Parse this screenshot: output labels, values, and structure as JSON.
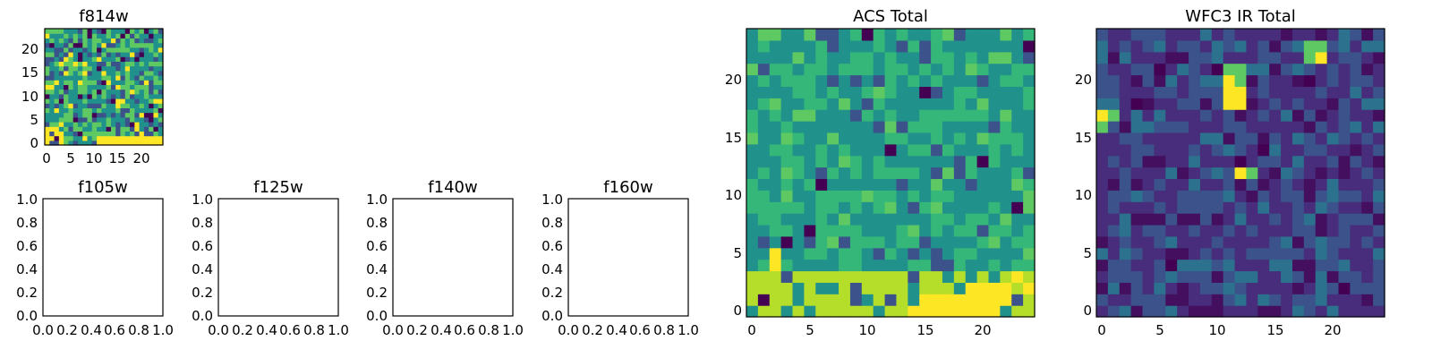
{
  "figure": {
    "colormap": "viridis",
    "colors": [
      "#440154",
      "#3b528b",
      "#21918c",
      "#5ec962",
      "#fde725"
    ]
  },
  "chart_data": [
    {
      "id": "f814w",
      "type": "heatmap",
      "title": "f814w",
      "xlabel": "",
      "ylabel": "",
      "xlim": [
        -0.5,
        24.5
      ],
      "ylim": [
        -0.5,
        24.5
      ],
      "xticks": [
        "0",
        "5",
        "10",
        "15",
        "20"
      ],
      "yticks": [
        "0",
        "5",
        "10",
        "15",
        "20"
      ],
      "grid": false,
      "notes_visible": "25x25 pixel cutout, mostly green/teal with a bright yellow band along the bottom rows"
    },
    {
      "id": "f105w",
      "type": "heatmap",
      "title": "f105w",
      "xlim": [
        0.0,
        1.0
      ],
      "ylim": [
        0.0,
        1.0
      ],
      "xticks": [
        "0.0",
        "0.2",
        "0.4",
        "0.6",
        "0.8",
        "1.0"
      ],
      "yticks": [
        "0.0",
        "0.2",
        "0.4",
        "0.6",
        "0.8",
        "1.0"
      ],
      "grid": false,
      "empty": true
    },
    {
      "id": "f125w",
      "type": "heatmap",
      "title": "f125w",
      "xlim": [
        0.0,
        1.0
      ],
      "ylim": [
        0.0,
        1.0
      ],
      "xticks": [
        "0.0",
        "0.2",
        "0.4",
        "0.6",
        "0.8",
        "1.0"
      ],
      "yticks": [
        "0.0",
        "0.2",
        "0.4",
        "0.6",
        "0.8",
        "1.0"
      ],
      "grid": false,
      "empty": true
    },
    {
      "id": "f140w",
      "type": "heatmap",
      "title": "f140w",
      "xlim": [
        0.0,
        1.0
      ],
      "ylim": [
        0.0,
        1.0
      ],
      "xticks": [
        "0.0",
        "0.2",
        "0.4",
        "0.6",
        "0.8",
        "1.0"
      ],
      "yticks": [
        "0.0",
        "0.2",
        "0.4",
        "0.6",
        "0.8",
        "1.0"
      ],
      "grid": false,
      "empty": true
    },
    {
      "id": "f160w",
      "type": "heatmap",
      "title": "f160w",
      "xlim": [
        0.0,
        1.0
      ],
      "ylim": [
        0.0,
        1.0
      ],
      "xticks": [
        "0.0",
        "0.2",
        "0.4",
        "0.6",
        "0.8",
        "1.0"
      ],
      "yticks": [
        "0.0",
        "0.2",
        "0.4",
        "0.6",
        "0.8",
        "1.0"
      ],
      "grid": false,
      "empty": true
    },
    {
      "id": "acs_total",
      "type": "heatmap",
      "title": "ACS Total",
      "xlim": [
        -0.5,
        24.5
      ],
      "ylim": [
        -0.5,
        24.5
      ],
      "xticks": [
        "0",
        "5",
        "10",
        "15",
        "20"
      ],
      "yticks": [
        "0",
        "5",
        "10",
        "15",
        "20"
      ],
      "grid": false,
      "hot_pixels": [
        [
          14,
          0
        ],
        [
          15,
          0
        ],
        [
          16,
          0
        ],
        [
          17,
          0
        ],
        [
          18,
          0
        ],
        [
          19,
          0
        ],
        [
          20,
          0
        ],
        [
          21,
          0
        ],
        [
          15,
          1
        ],
        [
          16,
          1
        ],
        [
          17,
          1
        ],
        [
          18,
          1
        ],
        [
          19,
          1
        ],
        [
          20,
          1
        ],
        [
          21,
          1
        ],
        [
          22,
          1
        ],
        [
          19,
          2
        ],
        [
          20,
          2
        ],
        [
          21,
          2
        ],
        [
          22,
          2
        ],
        [
          2,
          4
        ],
        [
          2,
          5
        ],
        [
          23,
          3
        ],
        [
          24,
          2
        ]
      ],
      "dark_pixels": [
        [
          1,
          1
        ],
        [
          5,
          7
        ],
        [
          12,
          14
        ],
        [
          15,
          19
        ],
        [
          20,
          13
        ],
        [
          23,
          9
        ],
        [
          24,
          23
        ],
        [
          6,
          11
        ],
        [
          3,
          6
        ],
        [
          10,
          24
        ]
      ]
    },
    {
      "id": "wfc3_ir_total",
      "type": "heatmap",
      "title": "WFC3 IR Total",
      "xlim": [
        -0.5,
        24.5
      ],
      "ylim": [
        -0.5,
        24.5
      ],
      "xticks": [
        "0",
        "5",
        "10",
        "15",
        "20"
      ],
      "yticks": [
        "0",
        "5",
        "10",
        "15",
        "20"
      ],
      "grid": false,
      "hot_pixels": [
        [
          11,
          18
        ],
        [
          12,
          18
        ],
        [
          11,
          19
        ],
        [
          12,
          19
        ],
        [
          11,
          20
        ],
        [
          12,
          12
        ],
        [
          0,
          17
        ],
        [
          19,
          22
        ]
      ],
      "warm_pixels": [
        [
          12,
          20
        ],
        [
          11,
          21
        ],
        [
          12,
          21
        ],
        [
          13,
          12
        ],
        [
          1,
          17
        ],
        [
          0,
          16
        ],
        [
          18,
          22
        ],
        [
          18,
          23
        ],
        [
          19,
          23
        ]
      ],
      "dark_pixels": [
        [
          5,
          21
        ],
        [
          10,
          21
        ],
        [
          18,
          20
        ],
        [
          14,
          14
        ],
        [
          12,
          13
        ],
        [
          3,
          18
        ],
        [
          21,
          2
        ],
        [
          6,
          4
        ]
      ]
    }
  ]
}
